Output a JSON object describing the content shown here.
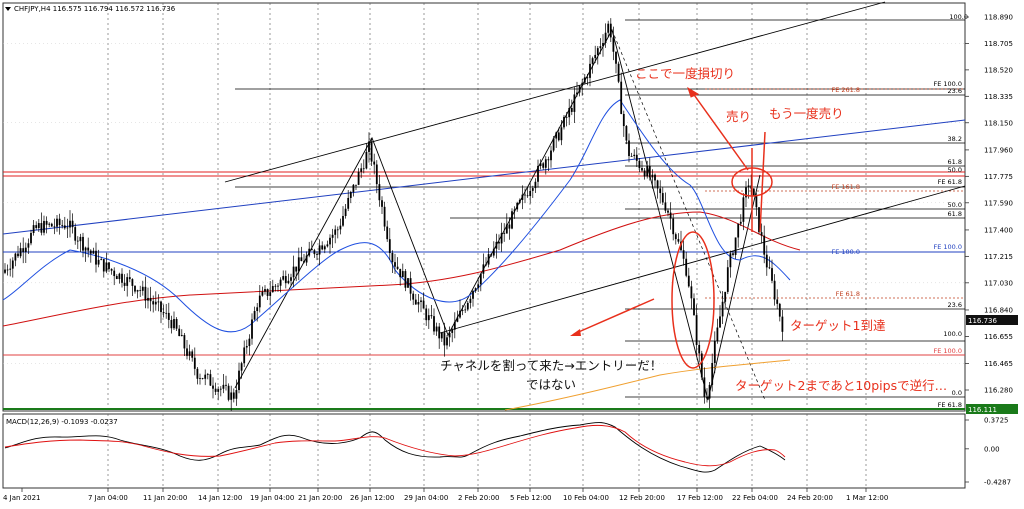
{
  "header": {
    "symbol_line": "CHFJPY,H4  116.575 116.794 116.572 116.736"
  },
  "macd": {
    "label": "MACD(12,26,9) -0.1093 -0.0237",
    "axis_labels": [
      "0.3725",
      "0.00",
      "-0.4287"
    ],
    "ylim": [
      -0.4287,
      0.3725
    ]
  },
  "colors": {
    "candle_bull": "#000000",
    "candle_bear": "#000000",
    "ma_fast": "#1f4fe0",
    "ma_slow": "#d01010",
    "ma_long": "#f0a030",
    "annotation_red": "#e8301c",
    "fib_red": "#c04020",
    "horizontal_blue": "#2040c0",
    "green_line": "#1a7a1a"
  },
  "annotations": {
    "cut_loss": "ここで一度損切り",
    "sell1": "売り",
    "sell2": "もう一度売り",
    "target1": "ターゲット1到達",
    "target2": "ターゲット2まであと10pipsで逆行…",
    "channel_break": "チャネルを割って来た→エントリーだ！",
    "not": "ではない"
  },
  "fib_labels": {
    "top_100": "100.0",
    "fe100": "FE 100.0",
    "fe261": "FE 261.8",
    "r236": "23.6",
    "r382": "38.2",
    "r618": "61.8",
    "r500": "50.0",
    "fe618_a": "FE 61.8",
    "fe1618": "FE 161.8",
    "r500b": "50.0",
    "r618b": "61.8",
    "fe1000_blue": "FE 100.0",
    "fe1000_blue_right": "FE 100.0",
    "fe618_b": "FE 61.8",
    "r236b": "23.6",
    "r1000": "100.0",
    "fe1000_red": "FE 100.0",
    "r00": "0.0",
    "fe618_c": "FE 61.8"
  },
  "chart_data": {
    "type": "candlestick",
    "symbol": "CHFJPY",
    "timeframe": "H4",
    "ohlc_last": {
      "open": 116.575,
      "high": 116.794,
      "low": 116.572,
      "close": 116.736
    },
    "ylim": [
      116.06,
      118.92
    ],
    "price_ticks": [
      "118.890",
      "118.705",
      "118.520",
      "118.335",
      "118.150",
      "117.960",
      "117.775",
      "117.590",
      "117.400",
      "117.215",
      "117.030",
      "116.840",
      "116.655",
      "116.465",
      "116.280"
    ],
    "current_price": "116.736",
    "bottom_price": "116.111",
    "x_ticks": [
      "4 Jan 2021",
      "7 Jan 04:00",
      "11 Jan 20:00",
      "14 Jan 12:00",
      "19 Jan 04:00",
      "21 Jan 20:00",
      "26 Jan 12:00",
      "29 Jan 04:00",
      "2 Feb 20:00",
      "5 Feb 12:00",
      "10 Feb 04:00",
      "12 Feb 20:00",
      "17 Feb 12:00",
      "22 Feb 04:00",
      "24 Feb 20:00",
      "1 Mar 12:00"
    ],
    "key_prices": {
      "channel_low_1": 116.23,
      "swing_high_1": 117.98,
      "swing_low_2": 116.6,
      "swing_high_2": 118.85,
      "swing_low_3": 116.19,
      "retest_high": 117.76,
      "latest_close": 116.736
    }
  }
}
